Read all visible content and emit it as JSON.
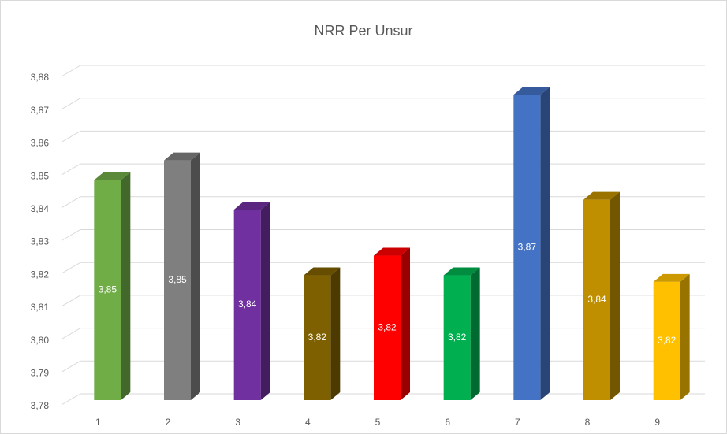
{
  "chart_data": {
    "type": "bar3d",
    "title": "NRR Per Unsur",
    "categories": [
      "1",
      "2",
      "3",
      "4",
      "5",
      "6",
      "7",
      "8",
      "9"
    ],
    "values": [
      3.847,
      3.853,
      3.838,
      3.818,
      3.824,
      3.818,
      3.873,
      3.841,
      3.816
    ],
    "value_labels": [
      "3,85",
      "3,85",
      "3,84",
      "3,82",
      "3,82",
      "3,82",
      "3,87",
      "3,84",
      "3,82"
    ],
    "colors": [
      "#70ad47",
      "#7f7f7f",
      "#7030a0",
      "#7f6000",
      "#ff0000",
      "#00b050",
      "#4472c4",
      "#bf8f00",
      "#ffc000"
    ],
    "ylim": [
      3.78,
      3.88
    ],
    "yticks": [
      {
        "value": 3.78,
        "label": "3,78"
      },
      {
        "value": 3.79,
        "label": "3,79"
      },
      {
        "value": 3.8,
        "label": "3,80"
      },
      {
        "value": 3.81,
        "label": "3,81"
      },
      {
        "value": 3.82,
        "label": "3,82"
      },
      {
        "value": 3.83,
        "label": "3,83"
      },
      {
        "value": 3.84,
        "label": "3,84"
      },
      {
        "value": 3.85,
        "label": "3,85"
      },
      {
        "value": 3.86,
        "label": "3,86"
      },
      {
        "value": 3.87,
        "label": "3,87"
      },
      {
        "value": 3.88,
        "label": "3,88"
      }
    ],
    "grid": true
  }
}
